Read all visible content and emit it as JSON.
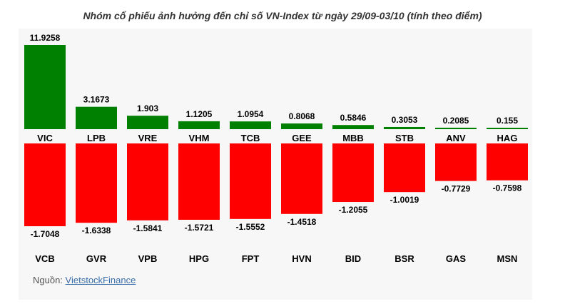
{
  "colors": {
    "positive": "#008000",
    "negative": "#ff0000",
    "background": "#f7f7f7"
  },
  "chart_data": {
    "type": "bar",
    "title": "Nhóm cổ phiếu ảnh hưởng đến chỉ số VN-Index từ ngày 29/09-03/10 (tính theo điểm)",
    "positive": {
      "categories": [
        "VIC",
        "LPB",
        "VRE",
        "VHM",
        "TCB",
        "GEE",
        "MBB",
        "STB",
        "ANV",
        "HAG"
      ],
      "values": [
        11.9258,
        3.1673,
        1.903,
        1.1205,
        1.0954,
        0.8068,
        0.5846,
        0.3053,
        0.2085,
        0.155
      ],
      "labels": [
        "11.9258",
        "3.1673",
        "1.903",
        "1.1205",
        "1.0954",
        "0.8068",
        "0.5846",
        "0.3053",
        "0.2085",
        "0.155"
      ]
    },
    "negative": {
      "categories": [
        "VCB",
        "GVR",
        "VPB",
        "HPG",
        "FPT",
        "HVN",
        "BID",
        "BSR",
        "GAS",
        "MSN"
      ],
      "values": [
        -1.7048,
        -1.6338,
        -1.5841,
        -1.5721,
        -1.5552,
        -1.4518,
        -1.2055,
        -1.0019,
        -0.7729,
        -0.7598
      ],
      "labels": [
        "-1.7048",
        "-1.6338",
        "-1.5841",
        "-1.5721",
        "-1.5552",
        "-1.4518",
        "-1.2055",
        "-1.0019",
        "-0.7729",
        "-0.7598"
      ]
    }
  },
  "source": {
    "prefix": "Nguồn: ",
    "link_text": "VietstockFinance"
  }
}
